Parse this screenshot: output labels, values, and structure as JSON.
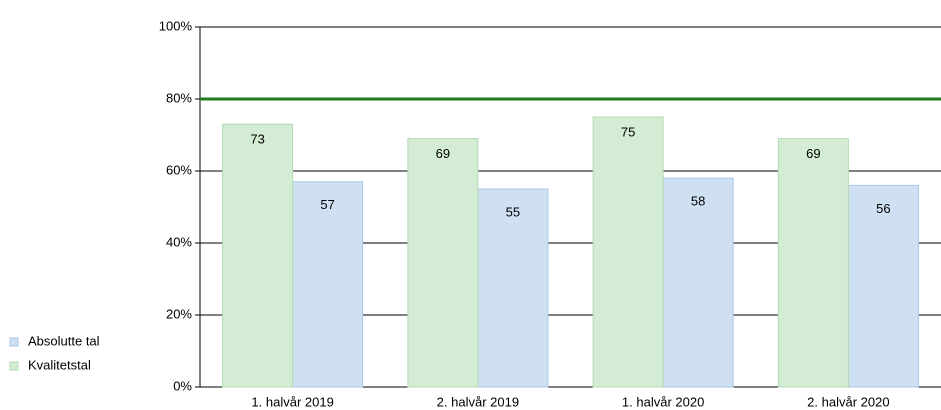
{
  "chart_data": {
    "type": "bar",
    "categories": [
      "1. halvår 2019",
      "2. halvår 2019",
      "1. halvår 2020",
      "2. halvår 2020"
    ],
    "series": [
      {
        "name": "Absolutte tal",
        "color": "#cfe0f3",
        "values": [
          57,
          55,
          58,
          56
        ]
      },
      {
        "name": "Kvalitetstal",
        "color": "#d5ecd4",
        "values": [
          73,
          69,
          75,
          69
        ]
      }
    ],
    "ylim": [
      0,
      100
    ],
    "yticks": [
      {
        "value": 0,
        "label": "0%"
      },
      {
        "value": 20,
        "label": "20%"
      },
      {
        "value": 40,
        "label": "40%"
      },
      {
        "value": 60,
        "label": "60%"
      },
      {
        "value": 80,
        "label": "80%"
      },
      {
        "value": 100,
        "label": "100%"
      }
    ],
    "grid": true,
    "reference_line": {
      "value": 80,
      "color": "#1e7d1e"
    },
    "legend": "left"
  }
}
